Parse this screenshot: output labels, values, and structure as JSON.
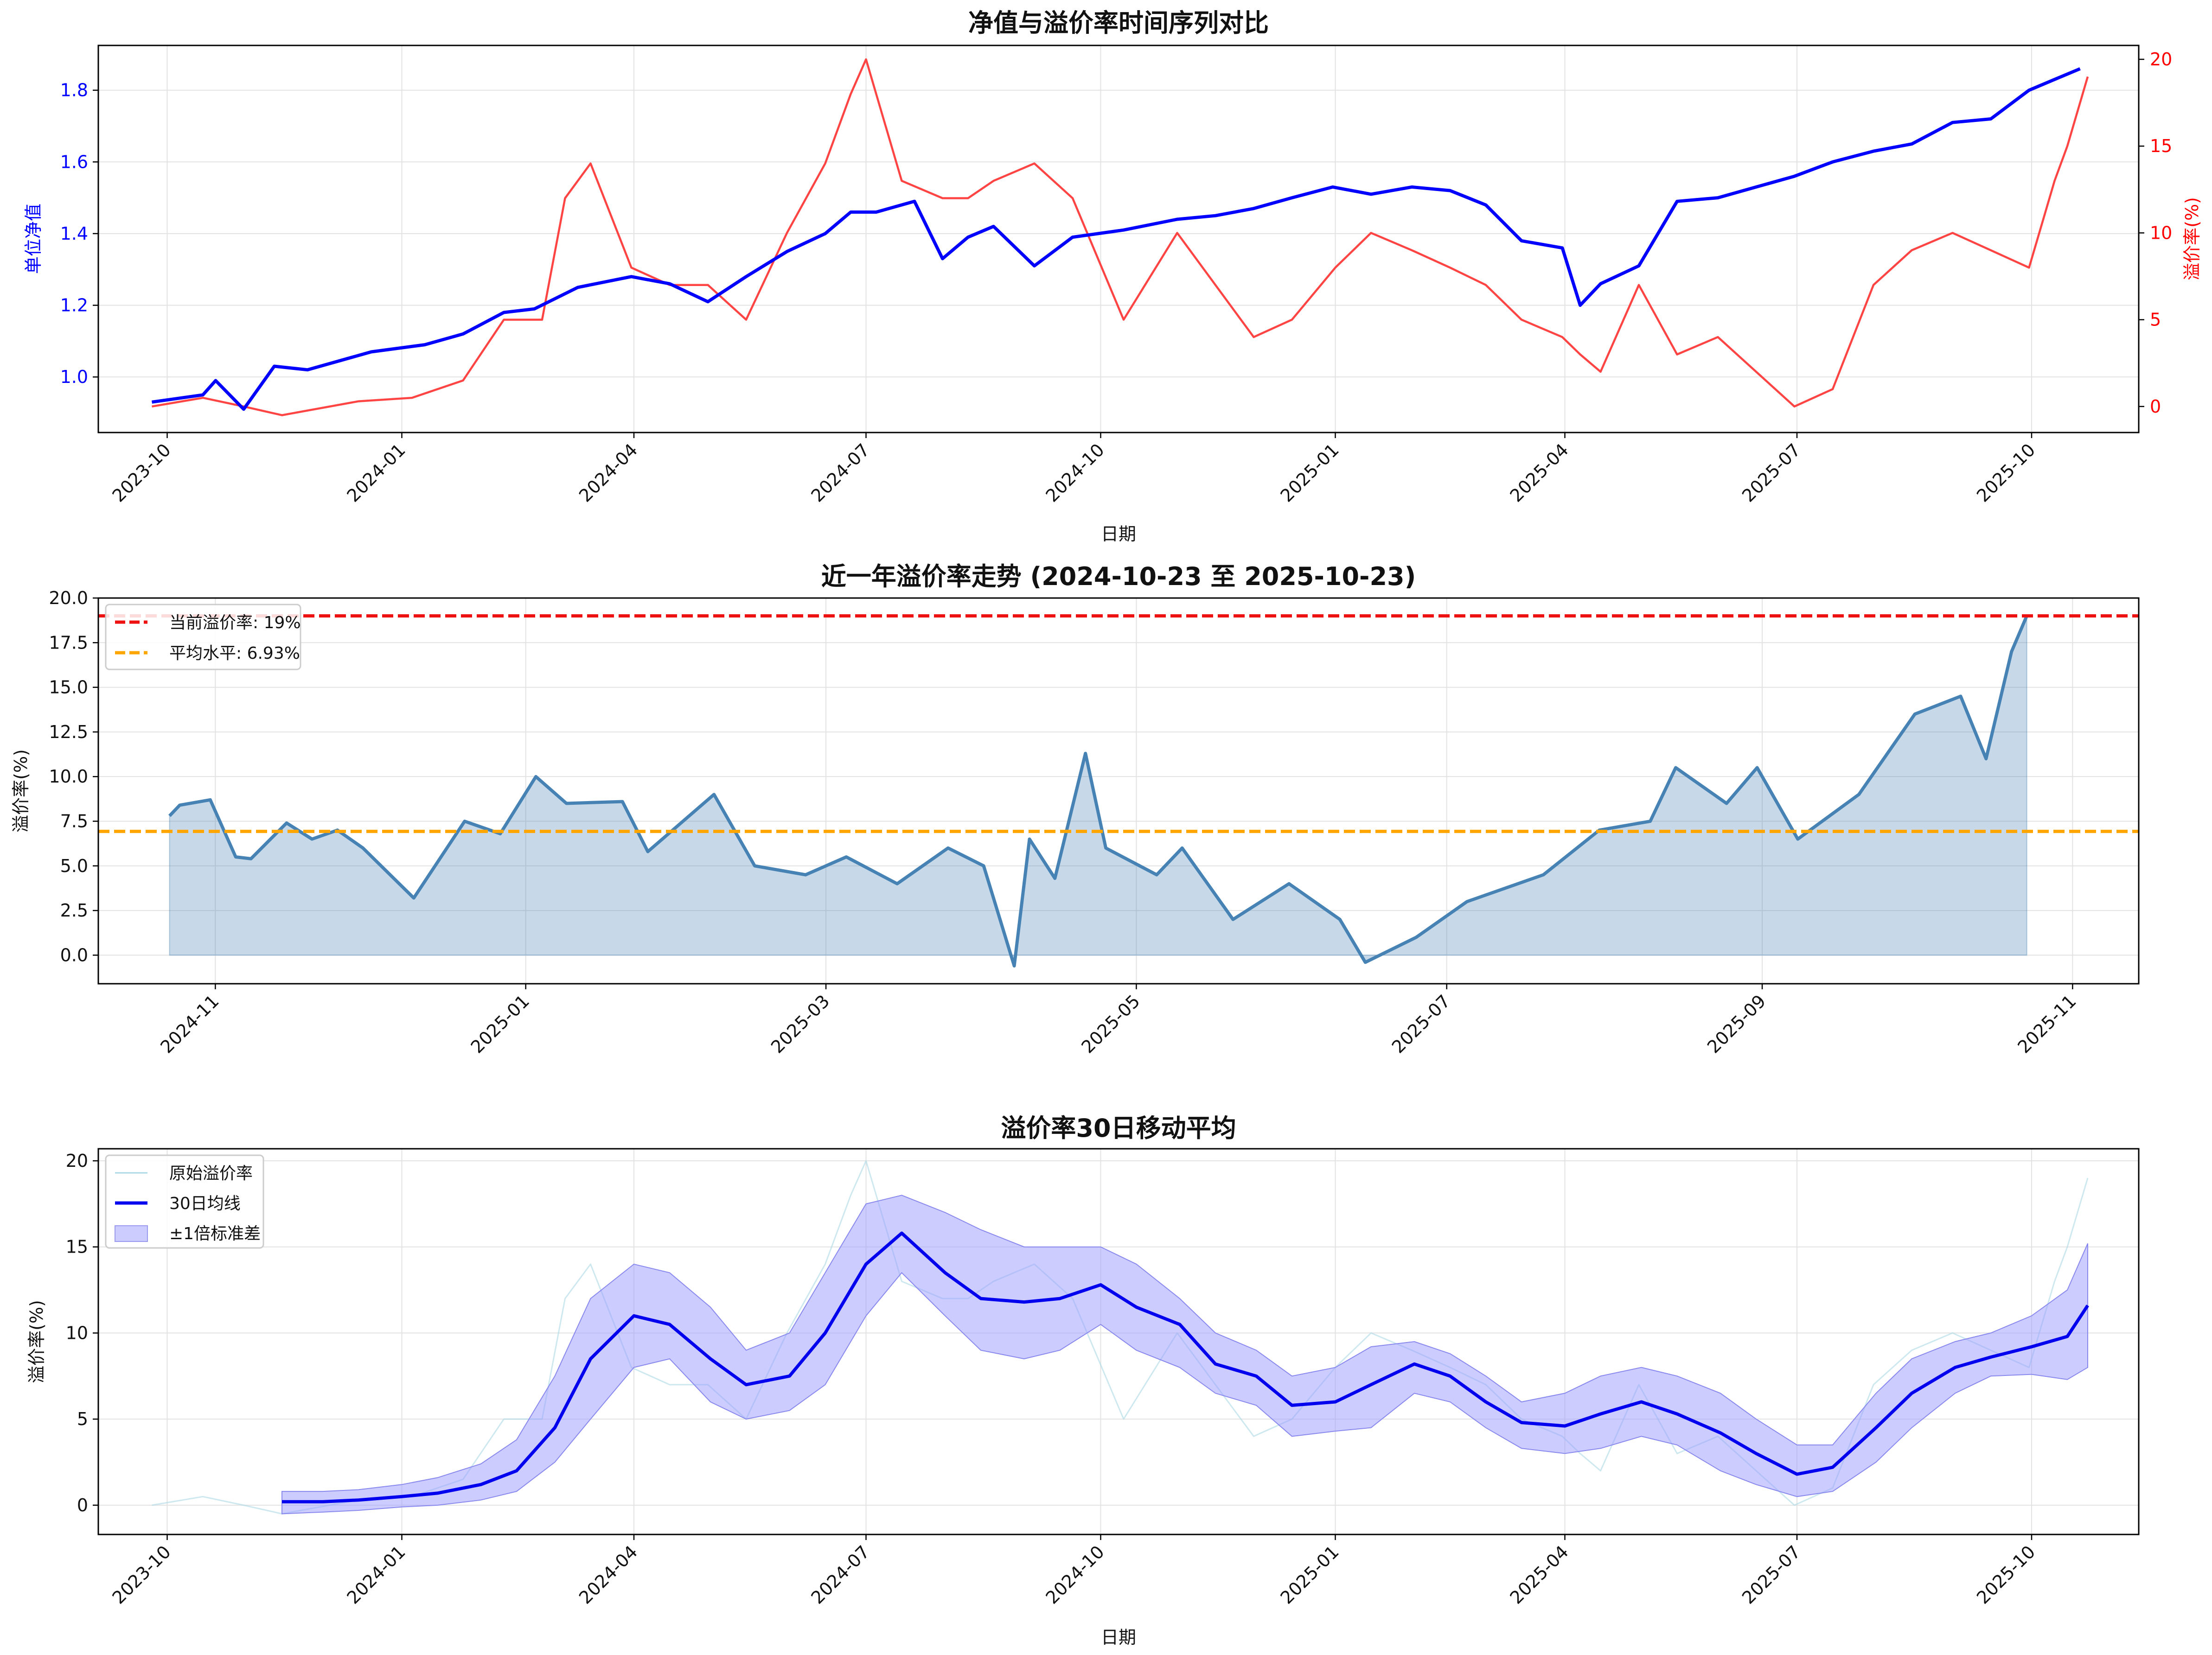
{
  "chart_data": [
    {
      "type": "line",
      "title": "净值与溢价率时间序列对比",
      "xlabel": "日期",
      "ylabel": "单位净值",
      "ylabel_right": "溢价率(%)",
      "xlim": [
        "2023-09-04",
        "2025-11-12"
      ],
      "ylim": [
        0.845,
        1.925
      ],
      "ylim_right": [
        -1.5,
        20.8
      ],
      "x_ticks": [
        "2023-10",
        "2024-01",
        "2024-04",
        "2024-07",
        "2024-10",
        "2025-01",
        "2025-04",
        "2025-07",
        "2025-10"
      ],
      "y_ticks": [
        "1.0",
        "1.2",
        "1.4",
        "1.6",
        "1.8"
      ],
      "y_ticks_right": [
        "0",
        "5",
        "10",
        "15",
        "20"
      ],
      "series": [
        {
          "name": "单位净值",
          "color": "#0000ff",
          "axis": "left",
          "x": [
            "2023-09-25",
            "2023-10-15",
            "2023-10-20",
            "2023-10-31",
            "2023-11-12",
            "2023-11-25",
            "2023-12-20",
            "2024-01-10",
            "2024-01-25",
            "2024-02-10",
            "2024-02-22",
            "2024-03-10",
            "2024-03-31",
            "2024-04-15",
            "2024-04-30",
            "2024-05-15",
            "2024-05-31",
            "2024-06-15",
            "2024-06-25",
            "2024-07-05",
            "2024-07-20",
            "2024-07-31",
            "2024-08-10",
            "2024-08-20",
            "2024-09-05",
            "2024-09-20",
            "2024-10-10",
            "2024-10-31",
            "2024-11-15",
            "2024-11-30",
            "2024-12-15",
            "2024-12-31",
            "2025-01-15",
            "2025-01-31",
            "2025-02-15",
            "2025-03-01",
            "2025-03-15",
            "2025-03-31",
            "2025-04-07",
            "2025-04-15",
            "2025-04-30",
            "2025-05-15",
            "2025-05-31",
            "2025-06-15",
            "2025-06-30",
            "2025-07-15",
            "2025-07-31",
            "2025-08-15",
            "2025-08-31",
            "2025-09-15",
            "2025-09-30",
            "2025-10-10",
            "2025-10-20"
          ],
          "y": [
            0.93,
            0.95,
            0.99,
            0.91,
            1.03,
            1.02,
            1.07,
            1.09,
            1.12,
            1.18,
            1.19,
            1.25,
            1.28,
            1.26,
            1.21,
            1.28,
            1.35,
            1.4,
            1.46,
            1.46,
            1.49,
            1.33,
            1.39,
            1.42,
            1.31,
            1.39,
            1.41,
            1.44,
            1.45,
            1.47,
            1.5,
            1.53,
            1.51,
            1.53,
            1.52,
            1.48,
            1.38,
            1.36,
            1.2,
            1.26,
            1.31,
            1.49,
            1.5,
            1.53,
            1.56,
            1.6,
            1.63,
            1.65,
            1.71,
            1.72,
            1.8,
            1.83,
            1.86
          ]
        },
        {
          "name": "溢价率",
          "color": "#ff4444",
          "axis": "right",
          "x": [
            "2023-09-25",
            "2023-10-15",
            "2023-10-31",
            "2023-11-15",
            "2023-12-15",
            "2024-01-05",
            "2024-01-25",
            "2024-02-10",
            "2024-02-25",
            "2024-03-05",
            "2024-03-15",
            "2024-03-31",
            "2024-04-15",
            "2024-04-30",
            "2024-05-15",
            "2024-05-31",
            "2024-06-15",
            "2024-06-25",
            "2024-07-01",
            "2024-07-15",
            "2024-07-31",
            "2024-08-10",
            "2024-08-20",
            "2024-09-05",
            "2024-09-20",
            "2024-10-10",
            "2024-10-31",
            "2024-11-10",
            "2024-11-30",
            "2024-12-15",
            "2025-01-01",
            "2025-01-15",
            "2025-01-31",
            "2025-02-15",
            "2025-03-01",
            "2025-03-15",
            "2025-03-31",
            "2025-04-07",
            "2025-04-15",
            "2025-04-30",
            "2025-05-15",
            "2025-05-31",
            "2025-06-15",
            "2025-06-30",
            "2025-07-15",
            "2025-07-31",
            "2025-08-15",
            "2025-08-31",
            "2025-09-15",
            "2025-09-30",
            "2025-10-10",
            "2025-10-15",
            "2025-10-23"
          ],
          "y": [
            0,
            0.5,
            0,
            -0.5,
            0.3,
            0.5,
            1.5,
            5,
            5,
            12,
            14,
            8,
            7,
            7,
            5,
            10,
            14,
            18,
            20,
            13,
            12,
            12,
            13,
            14,
            12,
            5,
            10,
            8,
            4,
            5,
            8,
            10,
            9,
            8,
            7,
            5,
            4,
            3,
            2,
            7,
            3,
            4,
            2,
            0,
            1,
            7,
            9,
            10,
            9,
            8,
            13,
            15,
            19
          ]
        }
      ]
    },
    {
      "type": "area",
      "title": "近一年溢价率走势 (2024-10-23 至 2025-10-23)",
      "xlabel": "",
      "ylabel": "溢价率(%)",
      "xlim": [
        "2024-10-09",
        "2025-11-14"
      ],
      "ylim": [
        -1.6,
        20.0
      ],
      "x_ticks": [
        "2024-11",
        "2025-01",
        "2025-03",
        "2025-05",
        "2025-07",
        "2025-09",
        "2025-11"
      ],
      "y_ticks": [
        "0.0",
        "2.5",
        "5.0",
        "7.5",
        "10.0",
        "12.5",
        "15.0",
        "17.5",
        "20.0"
      ],
      "legend_position": "top-left",
      "reference_lines": [
        {
          "label": "当前溢价率: 19%",
          "value": 19.0,
          "color": "#ee1111"
        },
        {
          "label": "平均水平: 6.93%",
          "value": 6.93,
          "color": "#ffa500"
        }
      ],
      "series": [
        {
          "name": "溢价率",
          "color": "#4682b4",
          "x": [
            "2024-10-23",
            "2024-10-25",
            "2024-10-31",
            "2024-11-05",
            "2024-11-08",
            "2024-11-15",
            "2024-11-20",
            "2024-11-25",
            "2024-11-30",
            "2024-12-10",
            "2024-12-20",
            "2024-12-27",
            "2025-01-03",
            "2025-01-09",
            "2025-01-20",
            "2025-01-25",
            "2025-02-07",
            "2025-02-15",
            "2025-02-25",
            "2025-03-05",
            "2025-03-15",
            "2025-03-25",
            "2025-04-01",
            "2025-04-07",
            "2025-04-10",
            "2025-04-15",
            "2025-04-21",
            "2025-04-25",
            "2025-05-05",
            "2025-05-10",
            "2025-05-20",
            "2025-05-31",
            "2025-06-10",
            "2025-06-15",
            "2025-06-25",
            "2025-07-05",
            "2025-07-20",
            "2025-07-31",
            "2025-08-10",
            "2025-08-15",
            "2025-08-25",
            "2025-08-31",
            "2025-09-08",
            "2025-09-20",
            "2025-10-01",
            "2025-10-10",
            "2025-10-15",
            "2025-10-20",
            "2025-10-23"
          ],
          "y": [
            7.8,
            8.4,
            8.7,
            5.5,
            5.4,
            7.4,
            6.5,
            7.0,
            6.0,
            3.2,
            7.5,
            6.8,
            10.0,
            8.5,
            8.6,
            5.8,
            9.0,
            5.0,
            4.5,
            5.5,
            4.0,
            6.0,
            5.0,
            -0.6,
            6.5,
            4.3,
            11.3,
            6.0,
            4.5,
            6.0,
            2.0,
            4.0,
            2.0,
            -0.4,
            1.0,
            3.0,
            4.5,
            7.0,
            7.5,
            10.5,
            8.5,
            10.5,
            6.5,
            9.0,
            13.5,
            14.5,
            11.0,
            17.0,
            19.0
          ]
        }
      ]
    },
    {
      "type": "line",
      "title": "溢价率30日移动平均",
      "xlabel": "日期",
      "ylabel": "溢价率(%)",
      "xlim": [
        "2023-09-04",
        "2025-11-12"
      ],
      "ylim": [
        -1.7,
        20.7
      ],
      "x_ticks": [
        "2023-10",
        "2024-01",
        "2024-04",
        "2024-07",
        "2024-10",
        "2025-01",
        "2025-04",
        "2025-07",
        "2025-10"
      ],
      "y_ticks": [
        "0",
        "5",
        "10",
        "15",
        "20"
      ],
      "legend_position": "top-left",
      "series": [
        {
          "name": "原始溢价率",
          "color": "#add8e6",
          "x": [
            "2023-09-25",
            "2023-10-15",
            "2023-10-31",
            "2023-11-15",
            "2023-12-15",
            "2024-01-05",
            "2024-01-25",
            "2024-02-10",
            "2024-02-25",
            "2024-03-05",
            "2024-03-15",
            "2024-03-31",
            "2024-04-15",
            "2024-04-30",
            "2024-05-15",
            "2024-05-31",
            "2024-06-15",
            "2024-06-25",
            "2024-07-01",
            "2024-07-15",
            "2024-07-31",
            "2024-08-10",
            "2024-08-20",
            "2024-09-05",
            "2024-09-20",
            "2024-10-10",
            "2024-10-31",
            "2024-11-10",
            "2024-11-30",
            "2024-12-15",
            "2025-01-01",
            "2025-01-15",
            "2025-01-31",
            "2025-02-15",
            "2025-03-01",
            "2025-03-15",
            "2025-03-31",
            "2025-04-07",
            "2025-04-15",
            "2025-04-30",
            "2025-05-15",
            "2025-05-31",
            "2025-06-15",
            "2025-06-30",
            "2025-07-15",
            "2025-07-31",
            "2025-08-15",
            "2025-08-31",
            "2025-09-15",
            "2025-09-30",
            "2025-10-10",
            "2025-10-15",
            "2025-10-23"
          ],
          "y": [
            0,
            0.5,
            0,
            -0.5,
            0.3,
            0.5,
            1.5,
            5,
            5,
            12,
            14,
            8,
            7,
            7,
            5,
            10,
            14,
            18,
            20,
            13,
            12,
            12,
            13,
            14,
            12,
            5,
            10,
            8,
            4,
            5,
            8,
            10,
            9,
            8,
            7,
            5,
            4,
            3,
            2,
            7,
            3,
            4,
            2,
            0,
            1,
            7,
            9,
            10,
            9,
            8,
            13,
            15,
            19
          ]
        },
        {
          "name": "30日均线",
          "color": "#0000ee",
          "x": [
            "2023-11-15",
            "2023-12-01",
            "2023-12-15",
            "2024-01-01",
            "2024-01-15",
            "2024-02-01",
            "2024-02-15",
            "2024-03-01",
            "2024-03-15",
            "2024-04-01",
            "2024-04-15",
            "2024-05-01",
            "2024-05-15",
            "2024-06-01",
            "2024-06-15",
            "2024-07-01",
            "2024-07-15",
            "2024-08-01",
            "2024-08-15",
            "2024-09-01",
            "2024-09-15",
            "2024-10-01",
            "2024-10-15",
            "2024-11-01",
            "2024-11-15",
            "2024-12-01",
            "2024-12-15",
            "2025-01-01",
            "2025-01-15",
            "2025-02-01",
            "2025-02-15",
            "2025-03-01",
            "2025-03-15",
            "2025-04-01",
            "2025-04-15",
            "2025-05-01",
            "2025-05-15",
            "2025-06-01",
            "2025-06-15",
            "2025-07-01",
            "2025-07-15",
            "2025-08-01",
            "2025-08-15",
            "2025-09-01",
            "2025-09-15",
            "2025-10-01",
            "2025-10-15",
            "2025-10-23"
          ],
          "y": [
            0.2,
            0.2,
            0.3,
            0.5,
            0.7,
            1.2,
            2.0,
            4.5,
            8.5,
            11.0,
            10.5,
            8.5,
            7.0,
            7.5,
            10.0,
            14.0,
            15.8,
            13.5,
            12.0,
            11.8,
            12.0,
            12.8,
            11.5,
            10.5,
            8.2,
            7.5,
            5.8,
            6.0,
            7.0,
            8.2,
            7.5,
            6.0,
            4.8,
            4.6,
            5.3,
            6.0,
            5.3,
            4.2,
            3.0,
            1.8,
            2.2,
            4.5,
            6.5,
            8.0,
            8.6,
            9.2,
            9.8,
            11.6
          ]
        }
      ],
      "band": {
        "name": "±1倍标准差",
        "color": "#ccccff",
        "x": [
          "2023-11-15",
          "2023-12-01",
          "2023-12-15",
          "2024-01-01",
          "2024-01-15",
          "2024-02-01",
          "2024-02-15",
          "2024-03-01",
          "2024-03-15",
          "2024-04-01",
          "2024-04-15",
          "2024-05-01",
          "2024-05-15",
          "2024-06-01",
          "2024-06-15",
          "2024-07-01",
          "2024-07-15",
          "2024-08-01",
          "2024-08-15",
          "2024-09-01",
          "2024-09-15",
          "2024-10-01",
          "2024-10-15",
          "2024-11-01",
          "2024-11-15",
          "2024-12-01",
          "2024-12-15",
          "2025-01-01",
          "2025-01-15",
          "2025-02-01",
          "2025-02-15",
          "2025-03-01",
          "2025-03-15",
          "2025-04-01",
          "2025-04-15",
          "2025-05-01",
          "2025-05-15",
          "2025-06-01",
          "2025-06-15",
          "2025-07-01",
          "2025-07-15",
          "2025-08-01",
          "2025-08-15",
          "2025-09-01",
          "2025-09-15",
          "2025-10-01",
          "2025-10-15",
          "2025-10-23"
        ],
        "upper": [
          0.8,
          0.8,
          0.9,
          1.2,
          1.6,
          2.4,
          3.8,
          7.5,
          12.0,
          14.0,
          13.5,
          11.5,
          9.0,
          10.0,
          13.5,
          17.5,
          18.0,
          17.0,
          16.0,
          15.0,
          15.0,
          15.0,
          14.0,
          12.0,
          10.0,
          9.0,
          7.5,
          8.0,
          9.2,
          9.5,
          8.8,
          7.5,
          6.0,
          6.5,
          7.5,
          8.0,
          7.5,
          6.5,
          5.0,
          3.5,
          3.5,
          6.5,
          8.5,
          9.5,
          10.0,
          11.0,
          12.5,
          15.2
        ],
        "lower": [
          -0.5,
          -0.4,
          -0.3,
          -0.1,
          0.0,
          0.3,
          0.8,
          2.5,
          5.0,
          8.0,
          8.5,
          6.0,
          5.0,
          5.5,
          7.0,
          11.0,
          13.5,
          11.0,
          9.0,
          8.5,
          9.0,
          10.5,
          9.0,
          8.0,
          6.5,
          5.8,
          4.0,
          4.3,
          4.5,
          6.5,
          6.0,
          4.5,
          3.3,
          3.0,
          3.3,
          4.0,
          3.5,
          2.0,
          1.2,
          0.5,
          0.8,
          2.5,
          4.5,
          6.5,
          7.5,
          7.6,
          7.3,
          8.0
        ]
      }
    }
  ]
}
